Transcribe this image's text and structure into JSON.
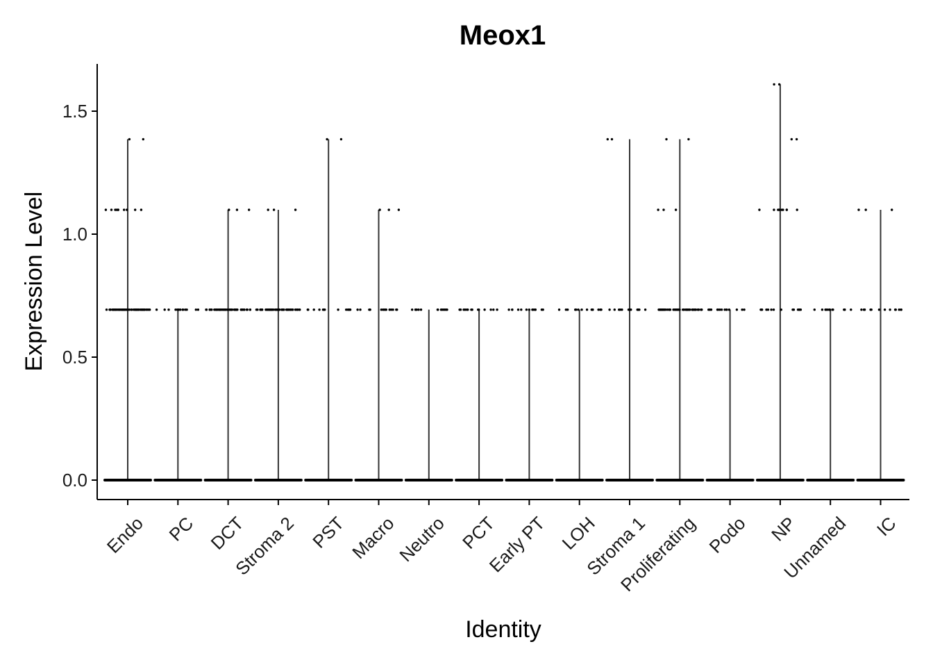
{
  "chart_data": {
    "type": "violin",
    "title": "Meox1",
    "xlabel": "Identity",
    "ylabel": "Expression Level",
    "ylim": [
      -0.08,
      1.7
    ],
    "yticks": [
      0.0,
      0.5,
      1.0,
      1.5
    ],
    "ytick_labels": [
      "0.0",
      "0.5",
      "1.0",
      "1.5"
    ],
    "categories": [
      "Endo",
      "PC",
      "DCT",
      "Stroma 2",
      "PST",
      "Macro",
      "Neutro",
      "PCT",
      "Early PT",
      "LOH",
      "Stroma 1",
      "Proliferating",
      "Podo",
      "NP",
      "Unnamed",
      "IC"
    ],
    "max_values": [
      1.386,
      0.693,
      1.099,
      1.099,
      1.386,
      1.099,
      0.693,
      0.693,
      0.693,
      0.693,
      1.386,
      1.386,
      0.693,
      1.609,
      0.693,
      1.099
    ],
    "jitter_levels": [
      [
        0,
        0.693,
        1.099,
        1.386
      ],
      [
        0,
        0.693
      ],
      [
        0,
        0.693,
        1.099
      ],
      [
        0,
        0.693,
        1.099
      ],
      [
        0,
        0.693,
        1.386
      ],
      [
        0,
        0.693,
        1.099
      ],
      [
        0,
        0.693
      ],
      [
        0,
        0.693
      ],
      [
        0,
        0.693
      ],
      [
        0,
        0.693
      ],
      [
        0,
        0.693,
        1.386
      ],
      [
        0,
        0.693,
        1.099,
        1.386
      ],
      [
        0,
        0.693
      ],
      [
        0,
        0.693,
        1.099,
        1.386,
        1.609
      ],
      [
        0,
        0.693
      ],
      [
        0,
        0.693,
        1.099
      ]
    ],
    "grid": false,
    "legend": "none",
    "colors": {
      "points": "#000000",
      "violin": "#000000",
      "axis": "#000000"
    }
  }
}
